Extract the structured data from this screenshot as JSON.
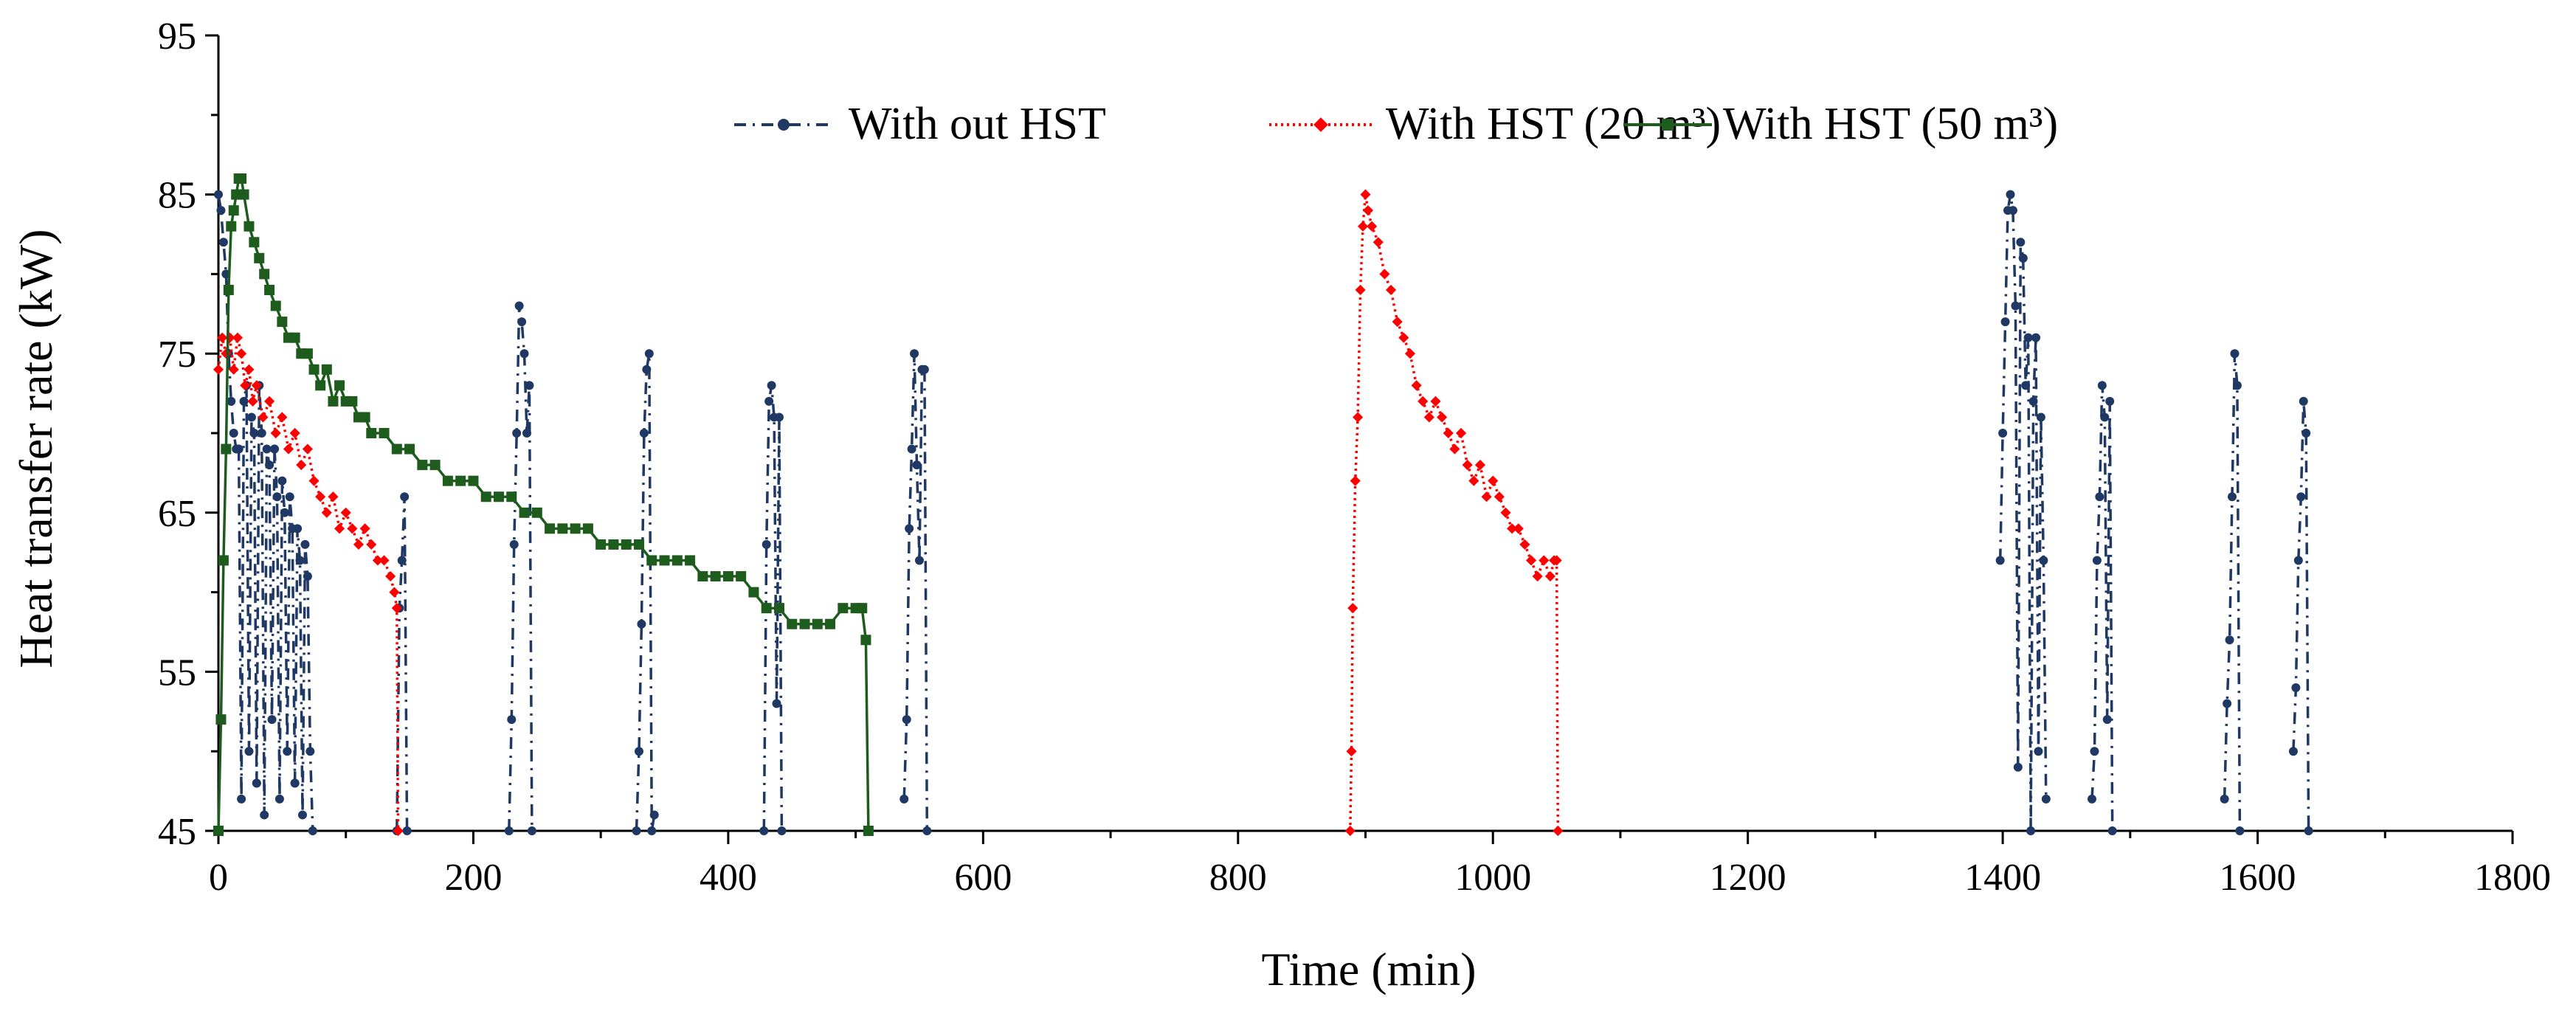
{
  "chart_data": {
    "type": "line",
    "title": "",
    "xlabel": "Time (min)",
    "ylabel": "Heat transfer rate  (kW)",
    "xlim": [
      0,
      1800
    ],
    "ylim": [
      45,
      95
    ],
    "xticks": [
      0,
      200,
      400,
      600,
      800,
      1000,
      1200,
      1400,
      1600,
      1800
    ],
    "yticks": [
      45,
      55,
      65,
      75,
      85,
      95
    ],
    "grid": false,
    "legend_position": "top",
    "series": [
      {
        "name": "With out HST",
        "color": "#1F3864",
        "style": "dash-dot",
        "marker": "circle",
        "segments": [
          {
            "x": [
              0,
              2,
              4,
              6,
              8,
              10,
              12,
              14,
              16
            ],
            "y": [
              85,
              84,
              82,
              80,
              75,
              72,
              70,
              69,
              69
            ]
          },
          {
            "x": [
              16,
              18,
              20,
              22,
              24,
              26,
              28,
              30
            ],
            "y": [
              69,
              47,
              72,
              73,
              50,
              71,
              70,
              48
            ]
          },
          {
            "x": [
              30,
              32,
              34,
              36,
              38,
              40,
              42,
              44
            ],
            "y": [
              48,
              73,
              70,
              46,
              69,
              68,
              52,
              69
            ]
          },
          {
            "x": [
              44,
              46,
              48,
              50,
              52,
              54,
              56,
              58,
              60
            ],
            "y": [
              69,
              66,
              47,
              67,
              65,
              50,
              66,
              64,
              48
            ]
          },
          {
            "x": [
              60,
              62,
              64,
              66,
              68,
              70,
              72,
              74
            ],
            "y": [
              48,
              64,
              62,
              46,
              63,
              61,
              50,
              45
            ]
          },
          {
            "x": [
              140,
              142,
              144,
              146,
              148
            ],
            "y": [
              45,
              59,
              62,
              66,
              45
            ]
          },
          {
            "x": [
              228,
              230,
              232,
              234,
              236,
              238,
              240,
              242,
              244,
              246
            ],
            "y": [
              45,
              52,
              63,
              70,
              78,
              77,
              75,
              70,
              73,
              45
            ]
          },
          {
            "x": [
              328,
              330,
              332,
              334,
              336,
              338,
              340,
              342
            ],
            "y": [
              45,
              50,
              58,
              70,
              74,
              75,
              45,
              46
            ]
          },
          {
            "x": [
              428,
              430,
              432,
              434,
              436,
              438,
              440,
              442
            ],
            "y": [
              45,
              63,
              72,
              73,
              71,
              53,
              71,
              45
            ]
          },
          {
            "x": [
              538,
              540,
              542,
              544,
              546,
              548,
              550,
              552,
              554,
              556
            ],
            "y": [
              47,
              52,
              64,
              69,
              75,
              68,
              62,
              74,
              74,
              45
            ]
          },
          {
            "x": [
              1398,
              1400,
              1402,
              1404,
              1406,
              1408,
              1410,
              1412,
              1414,
              1416
            ],
            "y": [
              62,
              70,
              77,
              84,
              85,
              84,
              78,
              49,
              82,
              81
            ]
          },
          {
            "x": [
              1416,
              1418,
              1420,
              1422,
              1424,
              1426,
              1428,
              1430,
              1432,
              1434
            ],
            "y": [
              81,
              73,
              76,
              45,
              72,
              76,
              50,
              71,
              62,
              47
            ]
          },
          {
            "x": [
              1470,
              1472,
              1474,
              1476,
              1478,
              1480,
              1482,
              1484,
              1486
            ],
            "y": [
              47,
              50,
              62,
              66,
              73,
              71,
              52,
              72,
              45
            ]
          },
          {
            "x": [
              1574,
              1576,
              1578,
              1580,
              1582,
              1584,
              1586
            ],
            "y": [
              47,
              53,
              57,
              66,
              75,
              73,
              45
            ]
          },
          {
            "x": [
              1628,
              1630,
              1632,
              1634,
              1636,
              1638,
              1640
            ],
            "y": [
              50,
              54,
              62,
              66,
              72,
              70,
              45
            ]
          }
        ]
      },
      {
        "name": "With HST (20 m³)",
        "color": "#FF0000",
        "style": "dotted",
        "marker": "diamond",
        "segments": [
          {
            "x": [
              0,
              3,
              6,
              9,
              12,
              15,
              18,
              21,
              24,
              27,
              30,
              35,
              40,
              45,
              50,
              55,
              60,
              65,
              70,
              75,
              80,
              85,
              90,
              95,
              100,
              105,
              110,
              115,
              120,
              125,
              130,
              135,
              138,
              140,
              141
            ],
            "y": [
              74,
              76,
              75,
              76,
              74,
              76,
              75,
              73,
              74,
              72,
              73,
              71,
              72,
              70,
              71,
              69,
              70,
              68,
              69,
              67,
              66,
              65,
              66,
              64,
              65,
              64,
              63,
              64,
              63,
              62,
              62,
              61,
              60,
              59,
              45
            ]
          },
          {
            "x": [
              888,
              889,
              890,
              892,
              894,
              896,
              898,
              900,
              902,
              905,
              910,
              915,
              920,
              925,
              930,
              935,
              940,
              945,
              950,
              955,
              960,
              965,
              970,
              975,
              980,
              985,
              990,
              995,
              1000,
              1005,
              1010,
              1015,
              1020,
              1025,
              1030,
              1035,
              1040,
              1045,
              1048,
              1050,
              1051
            ],
            "y": [
              45,
              50,
              59,
              67,
              71,
              79,
              83,
              85,
              84,
              83,
              82,
              80,
              79,
              77,
              76,
              75,
              73,
              72,
              71,
              72,
              71,
              70,
              69,
              70,
              68,
              67,
              68,
              66,
              67,
              66,
              65,
              64,
              64,
              63,
              62,
              61,
              62,
              61,
              62,
              62,
              45
            ]
          }
        ]
      },
      {
        "name": "With HST (50 m³)",
        "color": "#1E5C1E",
        "style": "solid",
        "marker": "square",
        "segments": [
          {
            "x": [
              0,
              2,
              4,
              6,
              8,
              10,
              12,
              14,
              16,
              18,
              20,
              24,
              28,
              32,
              36,
              40,
              45,
              50,
              55,
              60,
              65,
              70,
              75,
              80,
              85,
              90,
              95,
              100,
              105,
              110,
              115,
              120,
              130,
              140,
              150,
              160,
              170,
              180,
              190,
              200,
              210,
              220,
              230,
              240,
              250,
              260,
              270,
              280,
              290,
              300,
              310,
              320,
              330,
              340,
              350,
              360,
              370,
              380,
              390,
              400,
              410,
              420,
              430,
              440,
              450,
              460,
              470,
              480,
              490,
              500,
              505,
              508,
              510
            ],
            "y": [
              45,
              52,
              62,
              69,
              79,
              83,
              84,
              85,
              86,
              86,
              85,
              83,
              82,
              81,
              80,
              79,
              78,
              77,
              76,
              76,
              75,
              75,
              74,
              73,
              74,
              72,
              73,
              72,
              72,
              71,
              71,
              70,
              70,
              69,
              69,
              68,
              68,
              67,
              67,
              67,
              66,
              66,
              66,
              65,
              65,
              64,
              64,
              64,
              64,
              63,
              63,
              63,
              63,
              62,
              62,
              62,
              62,
              61,
              61,
              61,
              61,
              60,
              59,
              59,
              58,
              58,
              58,
              58,
              59,
              59,
              59,
              57,
              45
            ]
          }
        ]
      }
    ]
  }
}
